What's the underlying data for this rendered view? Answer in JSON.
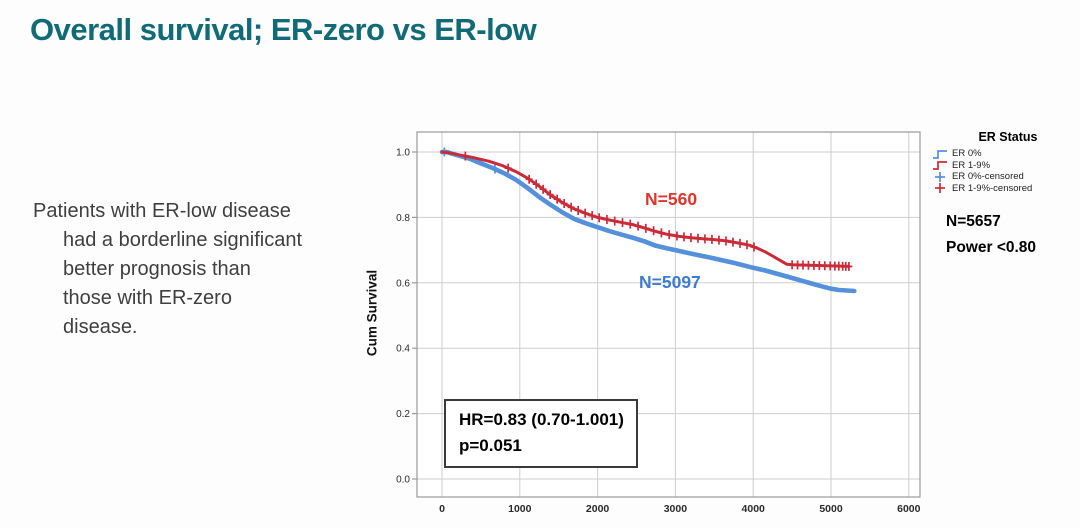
{
  "title": "Overall survival; ER-zero vs ER-low",
  "summary": {
    "lines": [
      "Patients with ER-low disease",
      "had a borderline significant",
      "better prognosis than",
      "those with ER-zero",
      "disease."
    ]
  },
  "stats": {
    "total_n": "N=5657",
    "power": "Power <0.80"
  },
  "colors": {
    "title_teal": "#116b77",
    "body_text": "#3f3f3f",
    "er_zero_blue": "#5590db",
    "er_low_red": "#cb2b39",
    "n_label_red": "#e1352b",
    "n_label_blue": "#3d7cd0",
    "grid": "#cdcdcd",
    "frame": "#9a9a9a",
    "axis_text": "#2b2b2b"
  },
  "chart_data": {
    "type": "line",
    "subtype": "kaplan-meier-step",
    "title": "",
    "xlabel": "",
    "ylabel": "Cum Survival",
    "xlim": [
      -320,
      6150
    ],
    "ylim": [
      -0.055,
      1.06
    ],
    "grid": true,
    "xticks": [
      0,
      1000,
      2000,
      3000,
      4000,
      5000,
      6000
    ],
    "xtick_labels": [
      "0",
      "1000",
      "2000",
      "3000",
      "4000",
      "5000",
      "6000"
    ],
    "yticks": [
      0.0,
      0.2,
      0.4,
      0.6,
      0.8,
      1.0
    ],
    "ytick_labels": [
      "0.0",
      "0.2",
      "0.4",
      "0.6",
      "0.8",
      "1.0"
    ],
    "series": [
      {
        "name": "ER 0%",
        "n_label": "N=5097",
        "color": "#5590db",
        "label_color": "#3d7cd0",
        "stroke_width": 4.6,
        "points": [
          [
            0,
            1.0
          ],
          [
            60,
            1.0
          ],
          [
            200,
            0.99
          ],
          [
            350,
            0.98
          ],
          [
            500,
            0.965
          ],
          [
            650,
            0.951
          ],
          [
            800,
            0.935
          ],
          [
            950,
            0.915
          ],
          [
            1100,
            0.89
          ],
          [
            1250,
            0.862
          ],
          [
            1400,
            0.838
          ],
          [
            1550,
            0.815
          ],
          [
            1700,
            0.795
          ],
          [
            1850,
            0.782
          ],
          [
            2000,
            0.77
          ],
          [
            2150,
            0.758
          ],
          [
            2300,
            0.748
          ],
          [
            2450,
            0.738
          ],
          [
            2600,
            0.727
          ],
          [
            2750,
            0.713
          ],
          [
            2900,
            0.705
          ],
          [
            3000,
            0.7
          ],
          [
            3150,
            0.692
          ],
          [
            3300,
            0.684
          ],
          [
            3450,
            0.677
          ],
          [
            3600,
            0.669
          ],
          [
            3750,
            0.661
          ],
          [
            3900,
            0.652
          ],
          [
            4000,
            0.646
          ],
          [
            4150,
            0.638
          ],
          [
            4300,
            0.628
          ],
          [
            4450,
            0.618
          ],
          [
            4600,
            0.608
          ],
          [
            4750,
            0.598
          ],
          [
            4900,
            0.588
          ],
          [
            5000,
            0.582
          ],
          [
            5100,
            0.578
          ],
          [
            5300,
            0.575
          ]
        ],
        "censor_t": [
          30,
          680
        ]
      },
      {
        "name": "ER 1-9%",
        "n_label": "N=560",
        "color": "#cb2b39",
        "label_color": "#e1352b",
        "stroke_width": 3.0,
        "points": [
          [
            0,
            1.0
          ],
          [
            80,
            0.998
          ],
          [
            250,
            0.99
          ],
          [
            420,
            0.982
          ],
          [
            600,
            0.972
          ],
          [
            780,
            0.958
          ],
          [
            950,
            0.94
          ],
          [
            1100,
            0.92
          ],
          [
            1250,
            0.895
          ],
          [
            1400,
            0.868
          ],
          [
            1550,
            0.845
          ],
          [
            1700,
            0.826
          ],
          [
            1850,
            0.812
          ],
          [
            2000,
            0.8
          ],
          [
            2150,
            0.792
          ],
          [
            2300,
            0.785
          ],
          [
            2450,
            0.778
          ],
          [
            2600,
            0.768
          ],
          [
            2750,
            0.757
          ],
          [
            2900,
            0.748
          ],
          [
            3050,
            0.742
          ],
          [
            3200,
            0.738
          ],
          [
            3350,
            0.735
          ],
          [
            3500,
            0.732
          ],
          [
            3650,
            0.728
          ],
          [
            3800,
            0.722
          ],
          [
            3950,
            0.715
          ],
          [
            4050,
            0.706
          ],
          [
            4150,
            0.695
          ],
          [
            4250,
            0.682
          ],
          [
            4350,
            0.668
          ],
          [
            4430,
            0.657
          ],
          [
            4500,
            0.655
          ],
          [
            5230,
            0.65
          ]
        ],
        "censor_t": [
          300,
          850,
          1120,
          1210,
          1300,
          1390,
          1480,
          1570,
          1660,
          1750,
          1840,
          1930,
          2020,
          2120,
          2220,
          2320,
          2420,
          2520,
          2620,
          2720,
          2820,
          2920,
          3020,
          3110,
          3200,
          3290,
          3380,
          3470,
          3560,
          3650,
          3740,
          3830,
          3920,
          4010,
          4500,
          4570,
          4640,
          4710,
          4780,
          4850,
          4920,
          4990,
          5050,
          5100,
          5150,
          5190,
          5230
        ]
      }
    ],
    "legend": {
      "title": "ER Status",
      "position": "right",
      "entries": [
        {
          "label": "ER 0%",
          "color": "#5590db",
          "glyph": "step"
        },
        {
          "label": "ER 1-9%",
          "color": "#cb2b39",
          "glyph": "step"
        },
        {
          "label": "ER 0%-censored",
          "color": "#5590db",
          "glyph": "plus"
        },
        {
          "label": "ER 1-9%-censored",
          "color": "#cb2b39",
          "glyph": "plus"
        }
      ]
    },
    "annotations": {
      "line1": "HR=0.83 (0.70-1.001)",
      "line2": "p=0.051"
    }
  }
}
